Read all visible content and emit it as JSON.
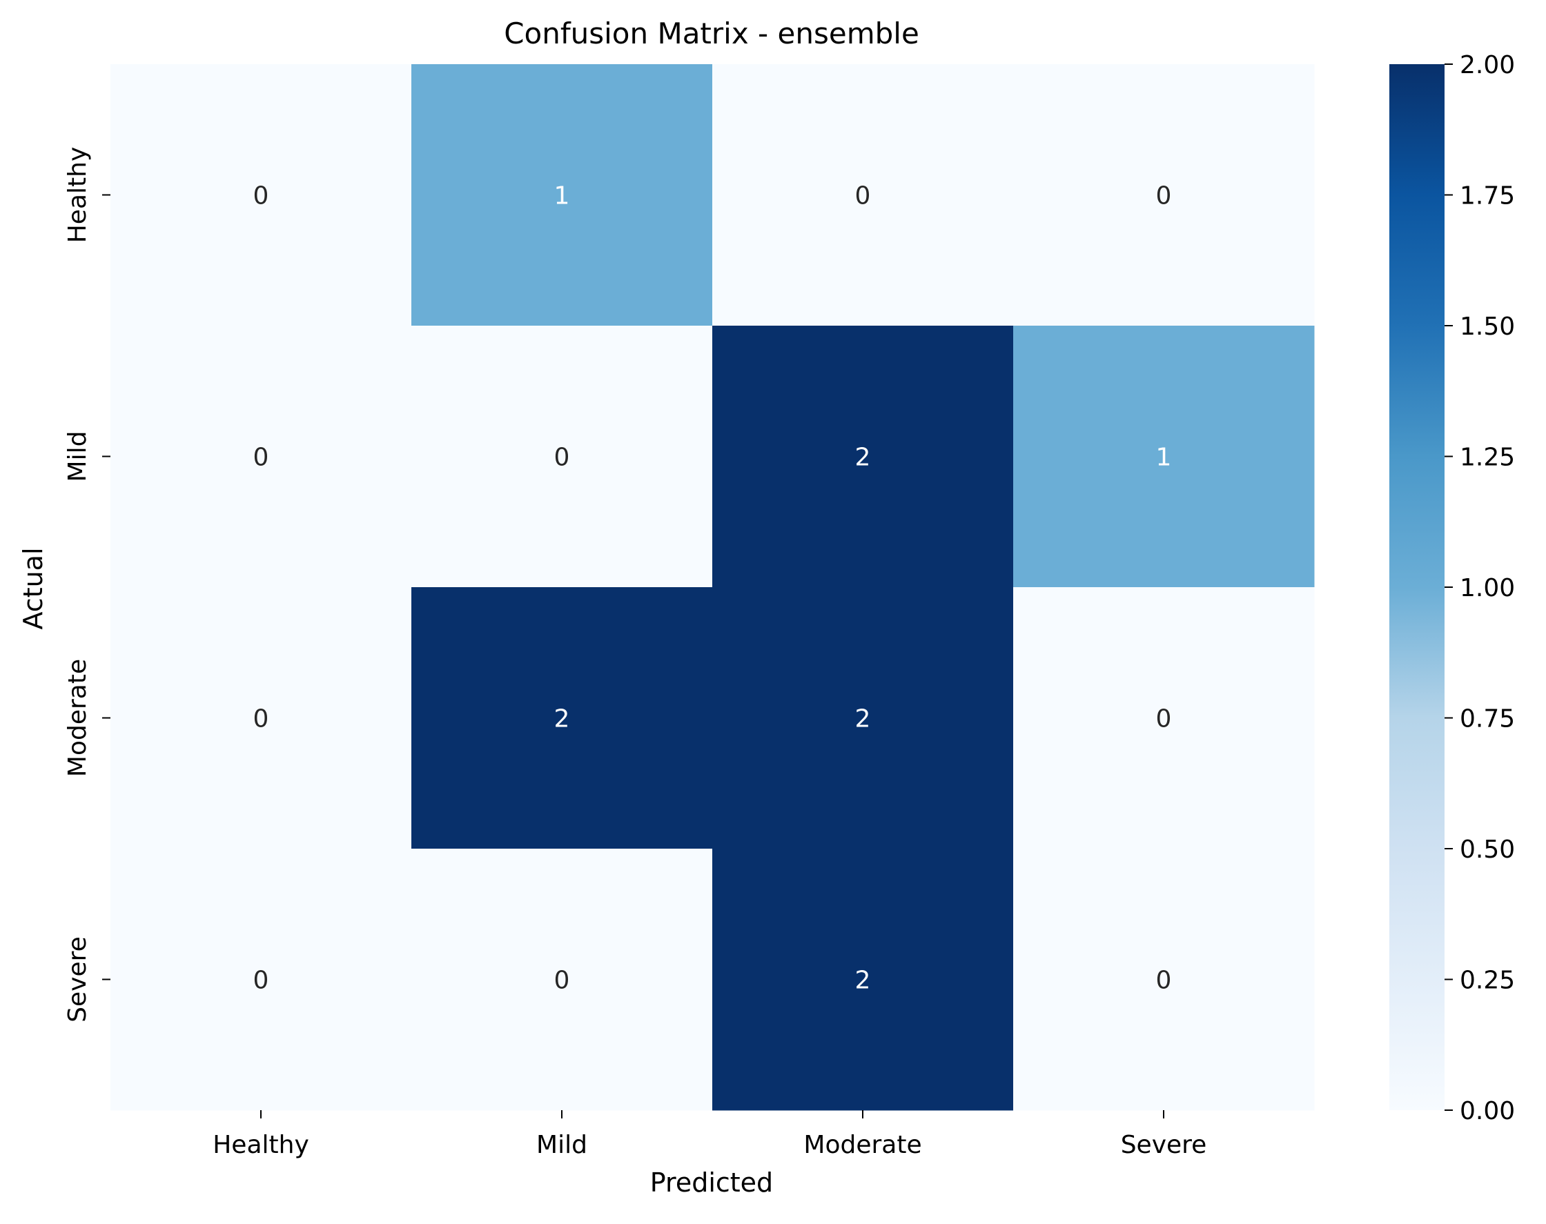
{
  "chart_data": {
    "type": "heatmap",
    "title": "Confusion Matrix - ensemble",
    "xlabel": "Predicted",
    "ylabel": "Actual",
    "x_categories": [
      "Healthy",
      "Mild",
      "Moderate",
      "Severe"
    ],
    "y_categories": [
      "Healthy",
      "Mild",
      "Moderate",
      "Severe"
    ],
    "values": [
      [
        0,
        1,
        0,
        0
      ],
      [
        0,
        0,
        2,
        1
      ],
      [
        0,
        2,
        2,
        0
      ],
      [
        0,
        0,
        2,
        0
      ]
    ],
    "annotations": true,
    "colormap": "Blues",
    "colorbar": {
      "range": [
        0.0,
        2.0
      ],
      "ticks": [
        "0.00",
        "0.25",
        "0.50",
        "0.75",
        "1.00",
        "1.25",
        "1.50",
        "1.75",
        "2.00"
      ]
    },
    "grid": false
  }
}
